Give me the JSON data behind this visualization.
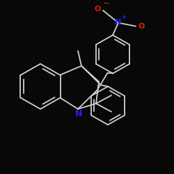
{
  "bg_color": "#080808",
  "bond_color": "#d0d0d0",
  "N_color": "#2222ff",
  "O_color": "#dd2200",
  "bw": 1.3,
  "figsize": [
    2.5,
    2.5
  ],
  "dpi": 100,
  "xlim": [
    0,
    250
  ],
  "ylim": [
    0,
    250
  ]
}
